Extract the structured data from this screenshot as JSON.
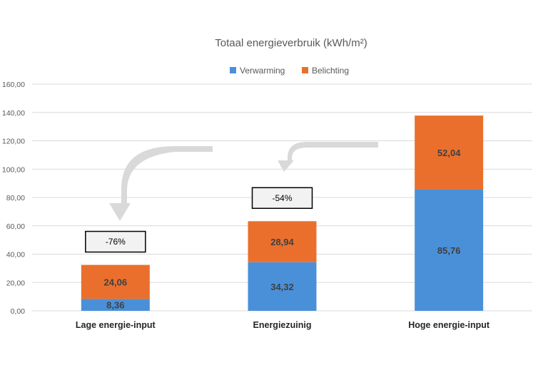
{
  "chart_data": {
    "type": "bar",
    "stacked": true,
    "title": "Totaal energieverbruik (kWh/m²)",
    "categories": [
      "Lage energie-input",
      "Energiezuinig",
      "Hoge energie-input"
    ],
    "series": [
      {
        "name": "Verwarming",
        "values": [
          8.36,
          34.32,
          85.76
        ],
        "labels": [
          "8,36",
          "34,32",
          "85,76"
        ],
        "color": "#4a90d9"
      },
      {
        "name": "Belichting",
        "values": [
          24.06,
          28.94,
          52.04
        ],
        "labels": [
          "24,06",
          "28,94",
          "52,04"
        ],
        "color": "#ea6f2d"
      }
    ],
    "ylim": [
      0,
      160
    ],
    "yticks": [
      0,
      20,
      40,
      60,
      80,
      100,
      120,
      140,
      160
    ],
    "ytick_labels": [
      "0,00",
      "20,00",
      "40,00",
      "60,00",
      "80,00",
      "100,00",
      "120,00",
      "140,00",
      "160,00"
    ],
    "grid": true,
    "legend": "top",
    "annotations": [
      {
        "text": "-76%",
        "category": 0
      },
      {
        "text": "-54%",
        "category": 1
      }
    ]
  },
  "colors": {
    "grid": "#d9d9d9",
    "arrow": "#d9d9d9",
    "text": "#595959"
  }
}
